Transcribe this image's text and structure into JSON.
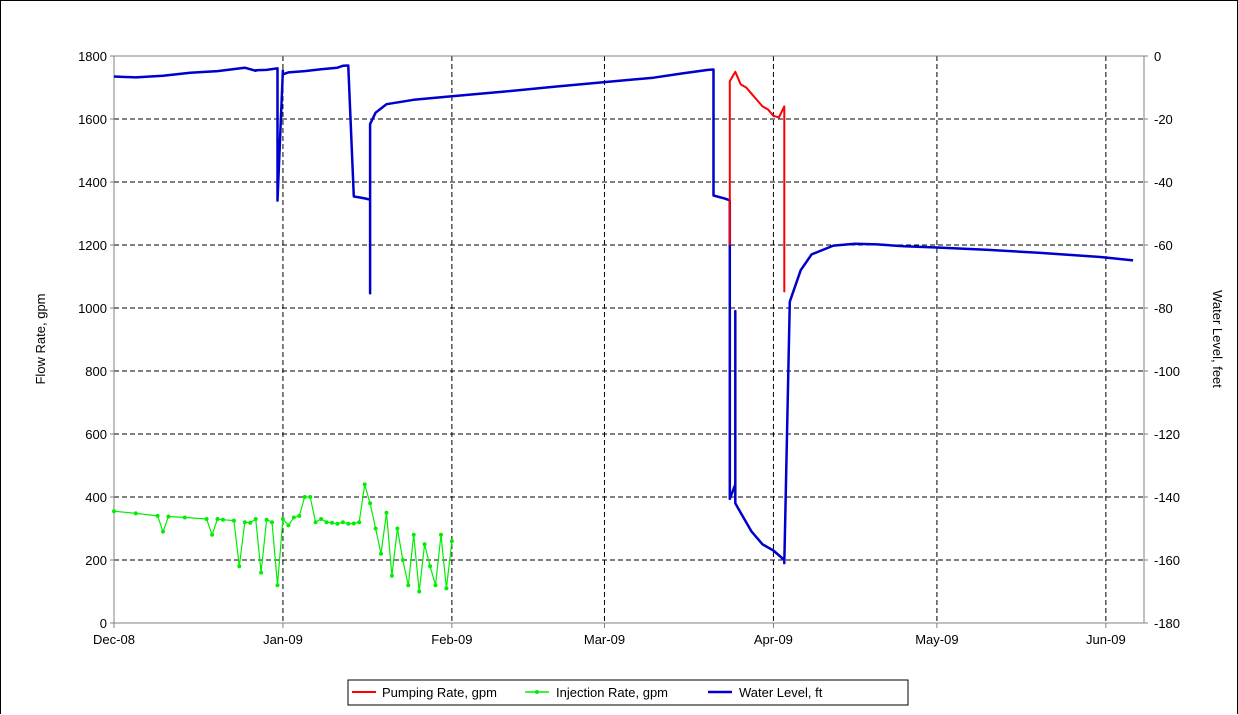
{
  "chart_data": {
    "type": "line",
    "title": "",
    "x_axis": {
      "type": "date",
      "range": [
        "2008-12-01",
        "2009-06-08"
      ],
      "tick_labels": [
        "Dec-08",
        "Jan-09",
        "Feb-09",
        "Mar-09",
        "Apr-09",
        "May-09",
        "Jun-09"
      ],
      "tick_dates": [
        "2008-12-01",
        "2009-01-01",
        "2009-02-01",
        "2009-03-01",
        "2009-04-01",
        "2009-05-01",
        "2009-06-01"
      ]
    },
    "y_axis_left": {
      "label": "Flow Rate, gpm",
      "range": [
        0,
        1800
      ],
      "ticks": [
        0,
        200,
        400,
        600,
        800,
        1000,
        1200,
        1400,
        1600,
        1800
      ]
    },
    "y_axis_right": {
      "label": "Water Level, feet",
      "range": [
        -180,
        0
      ],
      "ticks": [
        0,
        -20,
        -40,
        -60,
        -80,
        -100,
        -120,
        -140,
        -160,
        -180
      ]
    },
    "grid": true,
    "legend_position": "bottom",
    "series": [
      {
        "name": "Pumping Rate, gpm",
        "color": "#ff0000",
        "axis": "left",
        "marker": "none",
        "x": [
          "2009-03-24",
          "2009-03-24",
          "2009-03-25",
          "2009-03-26",
          "2009-03-27",
          "2009-03-28",
          "2009-03-29",
          "2009-03-30",
          "2009-03-31",
          "2009-04-01",
          "2009-04-02",
          "2009-04-03",
          "2009-04-03",
          "2009-04-03"
        ],
        "values": [
          1200,
          1720,
          1750,
          1710,
          1700,
          1680,
          1660,
          1640,
          1630,
          1610,
          1605,
          1640,
          1620,
          1050
        ]
      },
      {
        "name": "Injection Rate, gpm",
        "color": "#00ee00",
        "axis": "left",
        "marker": "dot",
        "x": [
          "2008-12-01",
          "2008-12-05",
          "2008-12-09",
          "2008-12-10",
          "2008-12-11",
          "2008-12-14",
          "2008-12-18",
          "2008-12-19",
          "2008-12-20",
          "2008-12-21",
          "2008-12-23",
          "2008-12-24",
          "2008-12-25",
          "2008-12-26",
          "2008-12-27",
          "2008-12-28",
          "2008-12-29",
          "2008-12-30",
          "2008-12-31",
          "2009-01-01",
          "2009-01-02",
          "2009-01-03",
          "2009-01-04",
          "2009-01-05",
          "2009-01-06",
          "2009-01-07",
          "2009-01-08",
          "2009-01-09",
          "2009-01-10",
          "2009-01-11",
          "2009-01-12",
          "2009-01-13",
          "2009-01-14",
          "2009-01-15",
          "2009-01-16",
          "2009-01-17",
          "2009-01-18",
          "2009-01-19",
          "2009-01-20",
          "2009-01-21",
          "2009-01-22",
          "2009-01-23",
          "2009-01-24",
          "2009-01-25",
          "2009-01-26",
          "2009-01-27",
          "2009-01-28",
          "2009-01-29",
          "2009-01-30",
          "2009-01-31",
          "2009-02-01"
        ],
        "values": [
          355,
          348,
          340,
          290,
          338,
          335,
          330,
          280,
          330,
          328,
          325,
          180,
          320,
          318,
          330,
          160,
          328,
          320,
          120,
          330,
          310,
          335,
          340,
          400,
          400,
          320,
          330,
          320,
          318,
          315,
          320,
          315,
          316,
          320,
          440,
          380,
          300,
          220,
          350,
          150,
          300,
          200,
          120,
          280,
          100,
          250,
          180,
          120,
          280,
          110,
          260
        ]
      },
      {
        "name": "Water Level, ft",
        "color": "#0000cc",
        "axis": "right",
        "marker": "none",
        "x": [
          "2008-12-01",
          "2008-12-05",
          "2008-12-10",
          "2008-12-15",
          "2008-12-20",
          "2008-12-25",
          "2008-12-27",
          "2008-12-27",
          "2008-12-29",
          "2008-12-31",
          "2008-12-31",
          "2009-01-01",
          "2009-01-01",
          "2009-01-02",
          "2009-01-05",
          "2009-01-08",
          "2009-01-11",
          "2009-01-12",
          "2009-01-13",
          "2009-01-13",
          "2009-01-14",
          "2009-01-15",
          "2009-01-16",
          "2009-01-17",
          "2009-01-17",
          "2009-01-17",
          "2009-01-18",
          "2009-01-20",
          "2009-01-25",
          "2009-02-01",
          "2009-02-10",
          "2009-02-20",
          "2009-03-01",
          "2009-03-10",
          "2009-03-15",
          "2009-03-20",
          "2009-03-21",
          "2009-03-21",
          "2009-03-23",
          "2009-03-24",
          "2009-03-24",
          "2009-03-25",
          "2009-03-25",
          "2009-03-25",
          "2009-03-26",
          "2009-03-28",
          "2009-03-30",
          "2009-04-01",
          "2009-04-03",
          "2009-04-03",
          "2009-04-04",
          "2009-04-06",
          "2009-04-08",
          "2009-04-12",
          "2009-04-16",
          "2009-04-20",
          "2009-04-25",
          "2009-05-01",
          "2009-05-10",
          "2009-05-20",
          "2009-05-31",
          "2009-06-04",
          "2009-06-06"
        ],
        "values": [
          -6.5,
          -6.8,
          -6.3,
          -5.3,
          -4.8,
          -3.7,
          -4.7,
          -4.5,
          -4.4,
          -3.9,
          -45.9,
          -4.6,
          -5.8,
          -5.2,
          -4.8,
          -4.2,
          -3.7,
          -3.1,
          -3.0,
          -3.3,
          -44.6,
          -44.9,
          -45.2,
          -45.6,
          -75.3,
          -21.6,
          -18,
          -15.3,
          -13.9,
          -12.8,
          -11.4,
          -9.7,
          -8.3,
          -6.9,
          -5.6,
          -4.4,
          -4.3,
          -44.3,
          -45.2,
          -45.8,
          -140.6,
          -136,
          -81,
          -142,
          -145,
          -151,
          -155,
          -157,
          -160,
          -161,
          -78,
          -68,
          -63,
          -60.2,
          -59.6,
          -59.8,
          -60.4,
          -60.8,
          -61.5,
          -62.5,
          -63.8,
          -64.5,
          -64.9
        ]
      }
    ]
  },
  "legend": {
    "items": [
      "Pumping Rate, gpm",
      "Injection Rate, gpm",
      "Water Level, ft"
    ]
  }
}
